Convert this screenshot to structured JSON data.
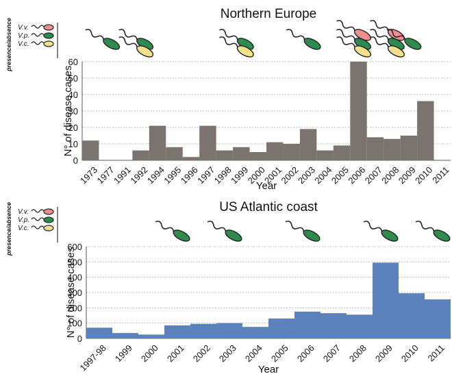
{
  "colors": {
    "bar_europe": "#7a7370",
    "bar_us": "#5b82bb",
    "vv": "#ee8f8f",
    "vp": "#2e8b4e",
    "vc": "#f2e08a",
    "grid": "#bbbbbb"
  },
  "legend": {
    "side_label": "presence/absence",
    "species": [
      "V.v.",
      "V.p.",
      "V.c."
    ]
  },
  "chart_data": [
    {
      "type": "bar",
      "title": "Northern Europe",
      "xlabel": "Year",
      "ylabel": "N° of disease cases",
      "ylim": [
        0,
        60
      ],
      "yticks": [
        0,
        10,
        20,
        30,
        40,
        50,
        60
      ],
      "grid": true,
      "categories": [
        "1973",
        "1977",
        "1991",
        "1992",
        "1994",
        "1995",
        "1996",
        "1997",
        "1998",
        "1999",
        "2000",
        "2001",
        "2002",
        "2003",
        "2004",
        "2005",
        "2006",
        "2007",
        "2008",
        "2009",
        "2010",
        "2011"
      ],
      "values": [
        12,
        0,
        0,
        6,
        21,
        8,
        2,
        21,
        6,
        8,
        5,
        11,
        10,
        19,
        6,
        9,
        60,
        14,
        13,
        15,
        36,
        0
      ],
      "presence": [
        {
          "year": "1977",
          "species": [
            "V.p."
          ]
        },
        {
          "year": "1992",
          "species": [
            "V.p.",
            "V.c."
          ]
        },
        {
          "year": "1999",
          "species": [
            "V.p.",
            "V.c."
          ]
        },
        {
          "year": "2003",
          "species": [
            "V.p."
          ]
        },
        {
          "year": "2006",
          "species": [
            "V.v.",
            "V.p.",
            "V.c."
          ]
        },
        {
          "year": "2008",
          "species": [
            "V.v.",
            "V.p.",
            "V.c."
          ]
        },
        {
          "year": "2009",
          "species": [
            "V.p."
          ]
        }
      ]
    },
    {
      "type": "bar",
      "title": "US Atlantic coast",
      "xlabel": "Year",
      "ylabel": "N° of disease cases",
      "ylim": [
        0,
        600
      ],
      "yticks": [
        0,
        100,
        200,
        300,
        400,
        500,
        600
      ],
      "grid": true,
      "categories": [
        "1997-98",
        "1999",
        "2000",
        "2001",
        "2002",
        "2003",
        "2004",
        "2005",
        "2006",
        "2007",
        "2008",
        "2009",
        "2010",
        "2011"
      ],
      "values": [
        70,
        35,
        25,
        85,
        95,
        100,
        75,
        130,
        175,
        165,
        155,
        495,
        295,
        255
      ],
      "presence": [
        {
          "year": "2001",
          "species": [
            "V.p."
          ]
        },
        {
          "year": "2003",
          "species": [
            "V.p."
          ]
        },
        {
          "year": "2006",
          "species": [
            "V.p."
          ]
        },
        {
          "year": "2009",
          "species": [
            "V.p."
          ]
        },
        {
          "year": "2011",
          "species": [
            "V.p."
          ]
        }
      ]
    }
  ]
}
